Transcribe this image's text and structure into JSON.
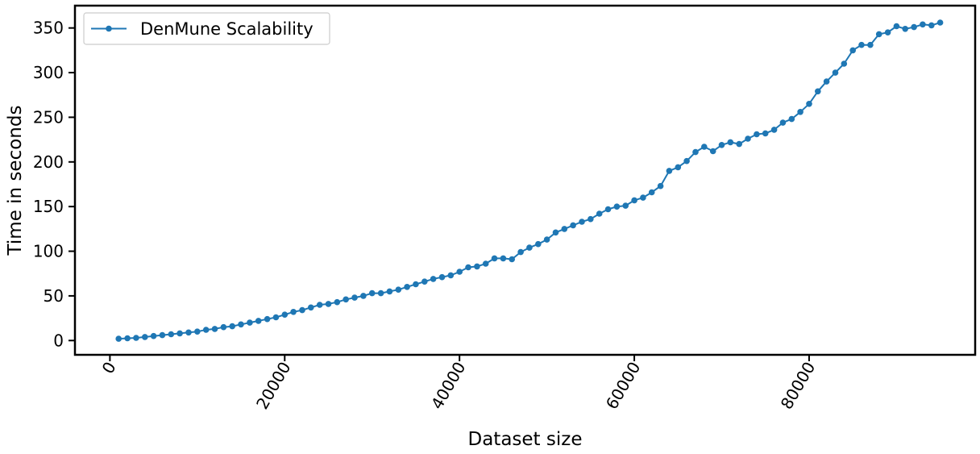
{
  "chart_data": {
    "type": "line",
    "title": "",
    "xlabel": "Dataset size",
    "ylabel": "Time in seconds",
    "xlim": [
      -4000,
      99000
    ],
    "ylim": [
      -16,
      375
    ],
    "xticks": [
      0,
      20000,
      40000,
      60000,
      80000
    ],
    "yticks": [
      0,
      50,
      100,
      150,
      200,
      250,
      300,
      350
    ],
    "grid": false,
    "legend_position": "top-left",
    "color": "#1f77b4",
    "series": [
      {
        "name": "DenMune Scalability",
        "x": [
          1000,
          2000,
          3000,
          4000,
          5000,
          6000,
          7000,
          8000,
          9000,
          10000,
          11000,
          12000,
          13000,
          14000,
          15000,
          16000,
          17000,
          18000,
          19000,
          20000,
          21000,
          22000,
          23000,
          24000,
          25000,
          26000,
          27000,
          28000,
          29000,
          30000,
          31000,
          32000,
          33000,
          34000,
          35000,
          36000,
          37000,
          38000,
          39000,
          40000,
          41000,
          42000,
          43000,
          44000,
          45000,
          46000,
          47000,
          48000,
          49000,
          50000,
          51000,
          52000,
          53000,
          54000,
          55000,
          56000,
          57000,
          58000,
          59000,
          60000,
          61000,
          62000,
          63000,
          64000,
          65000,
          66000,
          67000,
          68000,
          69000,
          70000,
          71000,
          72000,
          73000,
          74000,
          75000,
          76000,
          77000,
          78000,
          79000,
          80000,
          81000,
          82000,
          83000,
          84000,
          85000,
          86000,
          87000,
          88000,
          89000,
          90000,
          91000,
          92000,
          93000,
          94000,
          95000
        ],
        "y": [
          2,
          2.5,
          3,
          4,
          5,
          6,
          7,
          8,
          9,
          10,
          12,
          13,
          15,
          16,
          18,
          20,
          22,
          24,
          26,
          29,
          32,
          34,
          37,
          40,
          41,
          43,
          46,
          48,
          50,
          53,
          53,
          55,
          57,
          60,
          63,
          66,
          69,
          71,
          73,
          77,
          82,
          83,
          86,
          92,
          92,
          91,
          99,
          104,
          108,
          113,
          121,
          125,
          129,
          133,
          136,
          142,
          147,
          150,
          151,
          157,
          160,
          166,
          173,
          190,
          194,
          201,
          211,
          217,
          212,
          219,
          222,
          220,
          226,
          231,
          232,
          236,
          244,
          248,
          256,
          265,
          279,
          290,
          300,
          310,
          325,
          331,
          331,
          343,
          345,
          352,
          349,
          351,
          354,
          353,
          356
        ]
      }
    ]
  }
}
